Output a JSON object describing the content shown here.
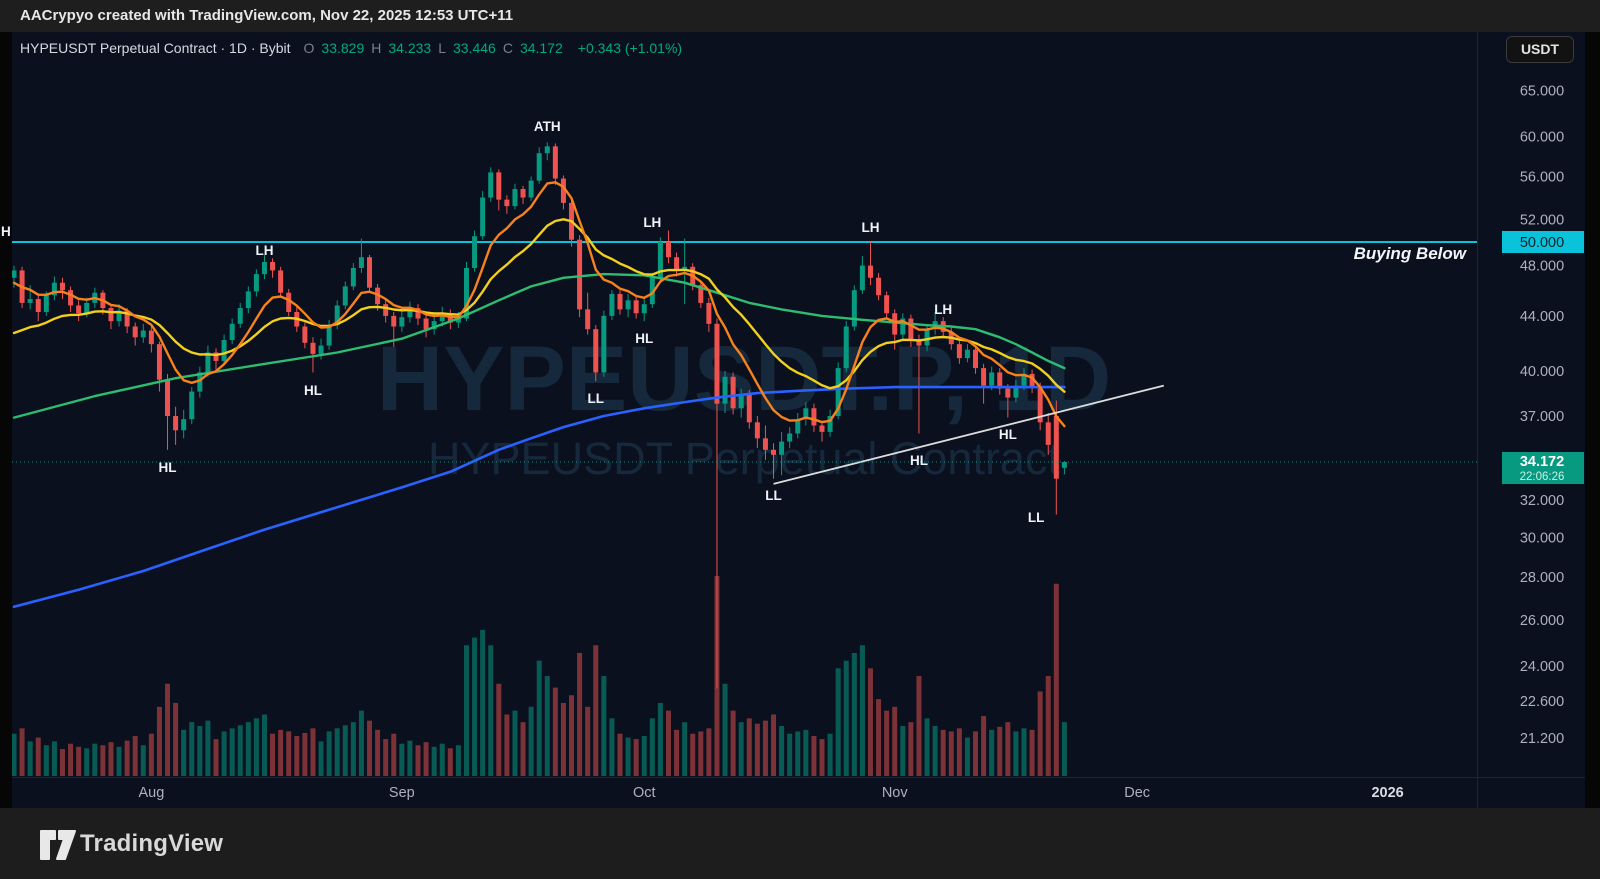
{
  "topbar": {
    "text": "AACrypyo created with TradingView.com, Nov 22, 2025 12:53 UTC+11"
  },
  "symbol_bar": {
    "title": "HYPEUSDT Perpetual Contract · 1D · Bybit",
    "o_label": "O",
    "o": "33.829",
    "h_label": "H",
    "h": "34.233",
    "l_label": "L",
    "l": "33.446",
    "c_label": "C",
    "c": "34.172",
    "change": "+0.343 (+1.01%)"
  },
  "currency_button": "USDT",
  "edge_label": "H",
  "watermark": {
    "line1": "HYPEUSDT.P, 1D",
    "line2": "HYPEUSDT Perpetual Contract"
  },
  "buying_below_label": "Buying Below",
  "footer": {
    "brand": "TradingView"
  },
  "colors": {
    "up": "#089981",
    "down": "#ef5350",
    "vol_up": "rgba(8,153,129,0.55)",
    "vol_down": "rgba(239,83,80,0.5)",
    "orange": "#f7821b",
    "yellow": "#f2cf1d",
    "green": "#2ebd70",
    "blue": "#2962ff",
    "cyan": "#0ac2da",
    "trend": "#dcdcdc",
    "axis_text": "#aeb1bb",
    "label_text": "#f0f3fa",
    "watermark": "rgba(70,140,175,0.20)",
    "last_box": "#089981",
    "last_line": "rgba(16,160,140,0.9)"
  },
  "chart_data": {
    "type": "candlestick",
    "symbol": "HYPEUSDT.P",
    "timeframe": "1D",
    "exchange": "Bybit",
    "last_price": "34.172",
    "countdown": "22:06:26",
    "horizontal_level": {
      "price": 50,
      "label": "50.000",
      "note": "Buying Below"
    },
    "trendline": {
      "from_i": 94,
      "from_price": 32.9,
      "to_i": 142.3,
      "to_price": 39.0
    },
    "y_ticks": [
      {
        "price": 65,
        "label": "65.000"
      },
      {
        "price": 60,
        "label": "60.000"
      },
      {
        "price": 56,
        "label": "56.000"
      },
      {
        "price": 52,
        "label": "52.000"
      },
      {
        "price": 48,
        "label": "48.000"
      },
      {
        "price": 44,
        "label": "44.000"
      },
      {
        "price": 40,
        "label": "40.000"
      },
      {
        "price": 37,
        "label": "37.000"
      },
      {
        "price": 32,
        "label": "32.000"
      },
      {
        "price": 30,
        "label": "30.000"
      },
      {
        "price": 28,
        "label": "28.000"
      },
      {
        "price": 26,
        "label": "26.000"
      },
      {
        "price": 24,
        "label": "24.000"
      },
      {
        "price": 22.6,
        "label": "22.600"
      },
      {
        "price": 21.2,
        "label": "21.200"
      }
    ],
    "x_ticks": [
      {
        "label": "Aug",
        "i": 17
      },
      {
        "label": "Sep",
        "i": 48
      },
      {
        "label": "Oct",
        "i": 78
      },
      {
        "label": "Nov",
        "i": 109
      },
      {
        "label": "Dec",
        "i": 139
      },
      {
        "label": "2026",
        "i": 170,
        "bold": true
      }
    ],
    "annotations": [
      {
        "t": "LH",
        "i": 31,
        "y_abs": 218
      },
      {
        "t": "HL",
        "i": 19,
        "y_abs": 435
      },
      {
        "t": "HL",
        "i": 37,
        "y_abs": 358
      },
      {
        "t": "ATH",
        "i": 66,
        "y_abs": 94
      },
      {
        "t": "LL",
        "i": 72,
        "y_abs": 366
      },
      {
        "t": "HL",
        "i": 78,
        "y_abs": 306
      },
      {
        "t": "LH",
        "i": 79,
        "y_abs": 190
      },
      {
        "t": "LL",
        "i": 94,
        "y_abs": 463
      },
      {
        "t": "LH",
        "i": 106,
        "y_abs": 195
      },
      {
        "t": "HL",
        "i": 112,
        "y_abs": 428
      },
      {
        "t": "LH",
        "i": 115,
        "y_abs": 277
      },
      {
        "t": "HL",
        "i": 123,
        "y_abs": 402
      },
      {
        "t": "LL",
        "i": 126.5,
        "y_abs": 485
      }
    ],
    "overlays": {
      "ema_fast": {
        "period": 8,
        "seed": 46.3
      },
      "ema_slow": {
        "period": 20,
        "seed": 42.2
      },
      "green_ma": [
        [
          0,
          36.9
        ],
        [
          10,
          38.3
        ],
        [
          20,
          39.5
        ],
        [
          30,
          40.4
        ],
        [
          40,
          41.3
        ],
        [
          48,
          42.3
        ],
        [
          55,
          43.8
        ],
        [
          60,
          45.2
        ],
        [
          64,
          46.3
        ],
        [
          68,
          47.0
        ],
        [
          73,
          47.3
        ],
        [
          78,
          47.2
        ],
        [
          83,
          46.6
        ],
        [
          87,
          45.8
        ],
        [
          91,
          45.0
        ],
        [
          95,
          44.5
        ],
        [
          100,
          44.0
        ],
        [
          105,
          43.7
        ],
        [
          109,
          43.5
        ],
        [
          113,
          43.3
        ],
        [
          116,
          43.2
        ],
        [
          119,
          43.0
        ],
        [
          122,
          42.4
        ],
        [
          124,
          41.9
        ],
        [
          126,
          41.3
        ],
        [
          128,
          40.7
        ],
        [
          130,
          40.2
        ]
      ],
      "blue_ma": [
        [
          0,
          26.6
        ],
        [
          8,
          27.4
        ],
        [
          16,
          28.3
        ],
        [
          24,
          29.4
        ],
        [
          31,
          30.4
        ],
        [
          40,
          31.6
        ],
        [
          48,
          32.7
        ],
        [
          54,
          33.6
        ],
        [
          60,
          34.9
        ],
        [
          64,
          35.6
        ],
        [
          68,
          36.3
        ],
        [
          73,
          37.0
        ],
        [
          78,
          37.5
        ],
        [
          83,
          37.9
        ],
        [
          87,
          38.2
        ],
        [
          92,
          38.5
        ],
        [
          97,
          38.65
        ],
        [
          103,
          38.8
        ],
        [
          109,
          38.9
        ],
        [
          121,
          38.9
        ],
        [
          130,
          38.9
        ]
      ]
    },
    "candles": [
      [
        47.0,
        48.0,
        46.2,
        47.6,
        55
      ],
      [
        47.6,
        47.9,
        44.6,
        45.0,
        62
      ],
      [
        45.0,
        46.4,
        44.5,
        45.3,
        45
      ],
      [
        45.3,
        45.7,
        43.6,
        44.3,
        50
      ],
      [
        44.3,
        45.9,
        44.0,
        45.6,
        40
      ],
      [
        45.6,
        47.1,
        45.2,
        46.6,
        45
      ],
      [
        46.6,
        47.0,
        45.3,
        46.0,
        35
      ],
      [
        46.0,
        46.3,
        44.3,
        44.8,
        42
      ],
      [
        44.8,
        45.2,
        43.6,
        44.2,
        38
      ],
      [
        44.2,
        45.4,
        43.9,
        45.0,
        36
      ],
      [
        45.0,
        46.2,
        44.6,
        45.8,
        42
      ],
      [
        45.8,
        46.0,
        44.1,
        44.6,
        40
      ],
      [
        44.6,
        44.9,
        43.0,
        43.6,
        44
      ],
      [
        43.6,
        44.9,
        43.2,
        44.4,
        38
      ],
      [
        44.4,
        44.6,
        42.7,
        43.2,
        46
      ],
      [
        43.2,
        43.5,
        41.8,
        42.4,
        52
      ],
      [
        42.4,
        43.4,
        42.0,
        42.9,
        40
      ],
      [
        42.9,
        43.2,
        41.3,
        41.9,
        55
      ],
      [
        41.9,
        42.1,
        38.6,
        39.4,
        90
      ],
      [
        39.4,
        39.8,
        34.9,
        37.0,
        120
      ],
      [
        37.0,
        37.6,
        35.2,
        36.1,
        95
      ],
      [
        36.1,
        37.4,
        35.6,
        36.8,
        60
      ],
      [
        36.8,
        38.9,
        36.5,
        38.6,
        70
      ],
      [
        38.6,
        40.3,
        38.2,
        39.9,
        65
      ],
      [
        39.9,
        41.8,
        39.6,
        41.3,
        72
      ],
      [
        41.3,
        41.6,
        40.1,
        40.7,
        48
      ],
      [
        40.7,
        42.6,
        40.4,
        42.2,
        58
      ],
      [
        42.2,
        43.8,
        41.9,
        43.4,
        62
      ],
      [
        43.4,
        45.0,
        43.1,
        44.6,
        66
      ],
      [
        44.6,
        46.3,
        44.2,
        45.9,
        70
      ],
      [
        45.9,
        47.7,
        45.5,
        47.3,
        75
      ],
      [
        47.3,
        48.9,
        46.9,
        48.3,
        80
      ],
      [
        48.3,
        48.6,
        47.0,
        47.6,
        55
      ],
      [
        47.6,
        47.9,
        45.4,
        45.8,
        60
      ],
      [
        45.8,
        46.1,
        44.0,
        44.3,
        58
      ],
      [
        44.3,
        44.8,
        42.8,
        43.2,
        52
      ],
      [
        43.2,
        43.5,
        41.6,
        42.0,
        56
      ],
      [
        42.0,
        42.4,
        39.9,
        41.2,
        62
      ],
      [
        41.2,
        42.3,
        40.8,
        41.8,
        45
      ],
      [
        41.8,
        43.7,
        41.5,
        43.3,
        58
      ],
      [
        43.3,
        45.2,
        43.0,
        44.8,
        62
      ],
      [
        44.8,
        46.7,
        44.5,
        46.3,
        66
      ],
      [
        46.3,
        48.2,
        46.0,
        47.8,
        70
      ],
      [
        47.8,
        50.3,
        47.4,
        48.7,
        85
      ],
      [
        48.7,
        48.9,
        45.8,
        46.2,
        72
      ],
      [
        46.2,
        46.5,
        44.4,
        44.9,
        60
      ],
      [
        44.9,
        45.3,
        43.5,
        44.0,
        48
      ],
      [
        44.0,
        44.3,
        41.7,
        43.2,
        55
      ],
      [
        43.2,
        44.4,
        42.8,
        43.9,
        42
      ],
      [
        43.9,
        45.1,
        43.5,
        44.6,
        46
      ],
      [
        44.6,
        44.9,
        43.3,
        43.8,
        40
      ],
      [
        43.8,
        44.1,
        42.4,
        43.0,
        44
      ],
      [
        43.0,
        44.1,
        42.6,
        43.6,
        38
      ],
      [
        43.6,
        44.7,
        43.2,
        44.2,
        42
      ],
      [
        44.2,
        44.5,
        43.0,
        43.5,
        36
      ],
      [
        43.5,
        44.3,
        43.1,
        43.8,
        40
      ],
      [
        43.8,
        48.3,
        43.6,
        47.8,
        170
      ],
      [
        47.8,
        51.0,
        47.5,
        50.5,
        180
      ],
      [
        50.5,
        54.6,
        50.2,
        54.0,
        190
      ],
      [
        54.0,
        56.9,
        53.6,
        56.4,
        170
      ],
      [
        56.4,
        56.7,
        52.8,
        53.8,
        120
      ],
      [
        53.8,
        54.2,
        52.5,
        53.2,
        80
      ],
      [
        53.2,
        55.3,
        52.9,
        54.8,
        85
      ],
      [
        54.8,
        55.1,
        53.4,
        54.0,
        70
      ],
      [
        54.0,
        56.0,
        53.7,
        55.6,
        90
      ],
      [
        55.6,
        58.9,
        55.3,
        58.3,
        150
      ],
      [
        58.3,
        59.4,
        57.6,
        59.0,
        130
      ],
      [
        59.0,
        59.3,
        55.2,
        55.8,
        115
      ],
      [
        55.8,
        56.1,
        52.9,
        53.5,
        95
      ],
      [
        53.5,
        53.9,
        49.6,
        50.2,
        105
      ],
      [
        50.2,
        50.6,
        43.9,
        44.5,
        160
      ],
      [
        44.5,
        45.8,
        42.6,
        43.0,
        90
      ],
      [
        43.0,
        43.3,
        39.3,
        39.9,
        170
      ],
      [
        39.9,
        44.4,
        39.6,
        44.0,
        130
      ],
      [
        44.0,
        46.0,
        43.7,
        45.7,
        75
      ],
      [
        45.7,
        46.0,
        44.1,
        44.5,
        55
      ],
      [
        44.5,
        45.7,
        43.9,
        45.2,
        50
      ],
      [
        45.2,
        45.5,
        43.8,
        44.2,
        48
      ],
      [
        44.2,
        45.3,
        43.6,
        44.9,
        52
      ],
      [
        44.9,
        47.4,
        44.6,
        47.0,
        75
      ],
      [
        47.0,
        50.4,
        46.7,
        50.0,
        95
      ],
      [
        50.0,
        51.0,
        48.2,
        48.7,
        85
      ],
      [
        48.7,
        49.1,
        47.1,
        47.6,
        60
      ],
      [
        47.6,
        50.3,
        44.9,
        47.9,
        70
      ],
      [
        47.9,
        48.2,
        46.0,
        46.4,
        55
      ],
      [
        46.4,
        46.7,
        44.6,
        45.0,
        58
      ],
      [
        45.0,
        45.4,
        42.8,
        43.4,
        62
      ],
      [
        43.4,
        43.8,
        23.1,
        37.8,
        260
      ],
      [
        37.8,
        40.0,
        37.2,
        39.6,
        120
      ],
      [
        39.6,
        39.9,
        37.1,
        37.5,
        85
      ],
      [
        37.5,
        38.8,
        36.9,
        38.4,
        70
      ],
      [
        38.4,
        38.7,
        36.2,
        36.6,
        75
      ],
      [
        36.6,
        37.0,
        35.0,
        35.6,
        68
      ],
      [
        35.6,
        36.4,
        34.3,
        34.9,
        72
      ],
      [
        34.9,
        35.3,
        33.2,
        34.6,
        80
      ],
      [
        34.6,
        36.0,
        33.4,
        35.4,
        65
      ],
      [
        35.4,
        36.3,
        35.0,
        35.9,
        55
      ],
      [
        35.9,
        37.2,
        35.6,
        36.8,
        58
      ],
      [
        36.8,
        37.9,
        36.4,
        37.5,
        60
      ],
      [
        37.5,
        37.8,
        36.0,
        36.4,
        52
      ],
      [
        36.4,
        36.7,
        35.4,
        36.0,
        48
      ],
      [
        36.0,
        37.4,
        35.7,
        37.0,
        55
      ],
      [
        37.0,
        40.6,
        36.8,
        40.2,
        140
      ],
      [
        40.2,
        43.6,
        39.9,
        43.2,
        150
      ],
      [
        43.2,
        46.4,
        42.9,
        46.0,
        160
      ],
      [
        46.0,
        48.8,
        45.7,
        48.0,
        170
      ],
      [
        48.0,
        50.0,
        46.4,
        47.0,
        140
      ],
      [
        47.0,
        47.4,
        45.2,
        45.6,
        100
      ],
      [
        45.6,
        45.9,
        43.8,
        44.2,
        85
      ],
      [
        44.2,
        44.5,
        41.5,
        42.6,
        90
      ],
      [
        42.6,
        44.2,
        42.2,
        43.8,
        65
      ],
      [
        43.8,
        44.1,
        41.7,
        42.2,
        70
      ],
      [
        42.2,
        42.6,
        35.9,
        41.8,
        130
      ],
      [
        41.8,
        43.4,
        41.4,
        43.0,
        75
      ],
      [
        43.0,
        44.3,
        42.6,
        43.6,
        65
      ],
      [
        43.6,
        43.9,
        42.4,
        42.8,
        60
      ],
      [
        42.8,
        43.1,
        41.5,
        41.9,
        58
      ],
      [
        41.9,
        42.2,
        40.5,
        40.9,
        62
      ],
      [
        40.9,
        41.9,
        40.6,
        41.5,
        50
      ],
      [
        41.5,
        41.8,
        39.8,
        40.2,
        58
      ],
      [
        40.2,
        40.5,
        37.8,
        39.0,
        78
      ],
      [
        39.0,
        40.3,
        38.7,
        39.9,
        60
      ],
      [
        39.9,
        40.2,
        38.4,
        38.8,
        64
      ],
      [
        38.8,
        39.1,
        36.9,
        38.2,
        70
      ],
      [
        38.2,
        39.4,
        37.9,
        39.0,
        58
      ],
      [
        39.0,
        40.2,
        38.7,
        39.8,
        62
      ],
      [
        39.8,
        40.1,
        38.5,
        38.9,
        60
      ],
      [
        38.9,
        39.2,
        36.1,
        36.6,
        110
      ],
      [
        36.6,
        37.2,
        34.6,
        35.2,
        130
      ],
      [
        37.0,
        38.0,
        31.2,
        33.2,
        250
      ],
      [
        33.829,
        34.233,
        33.446,
        34.172,
        70
      ]
    ]
  }
}
